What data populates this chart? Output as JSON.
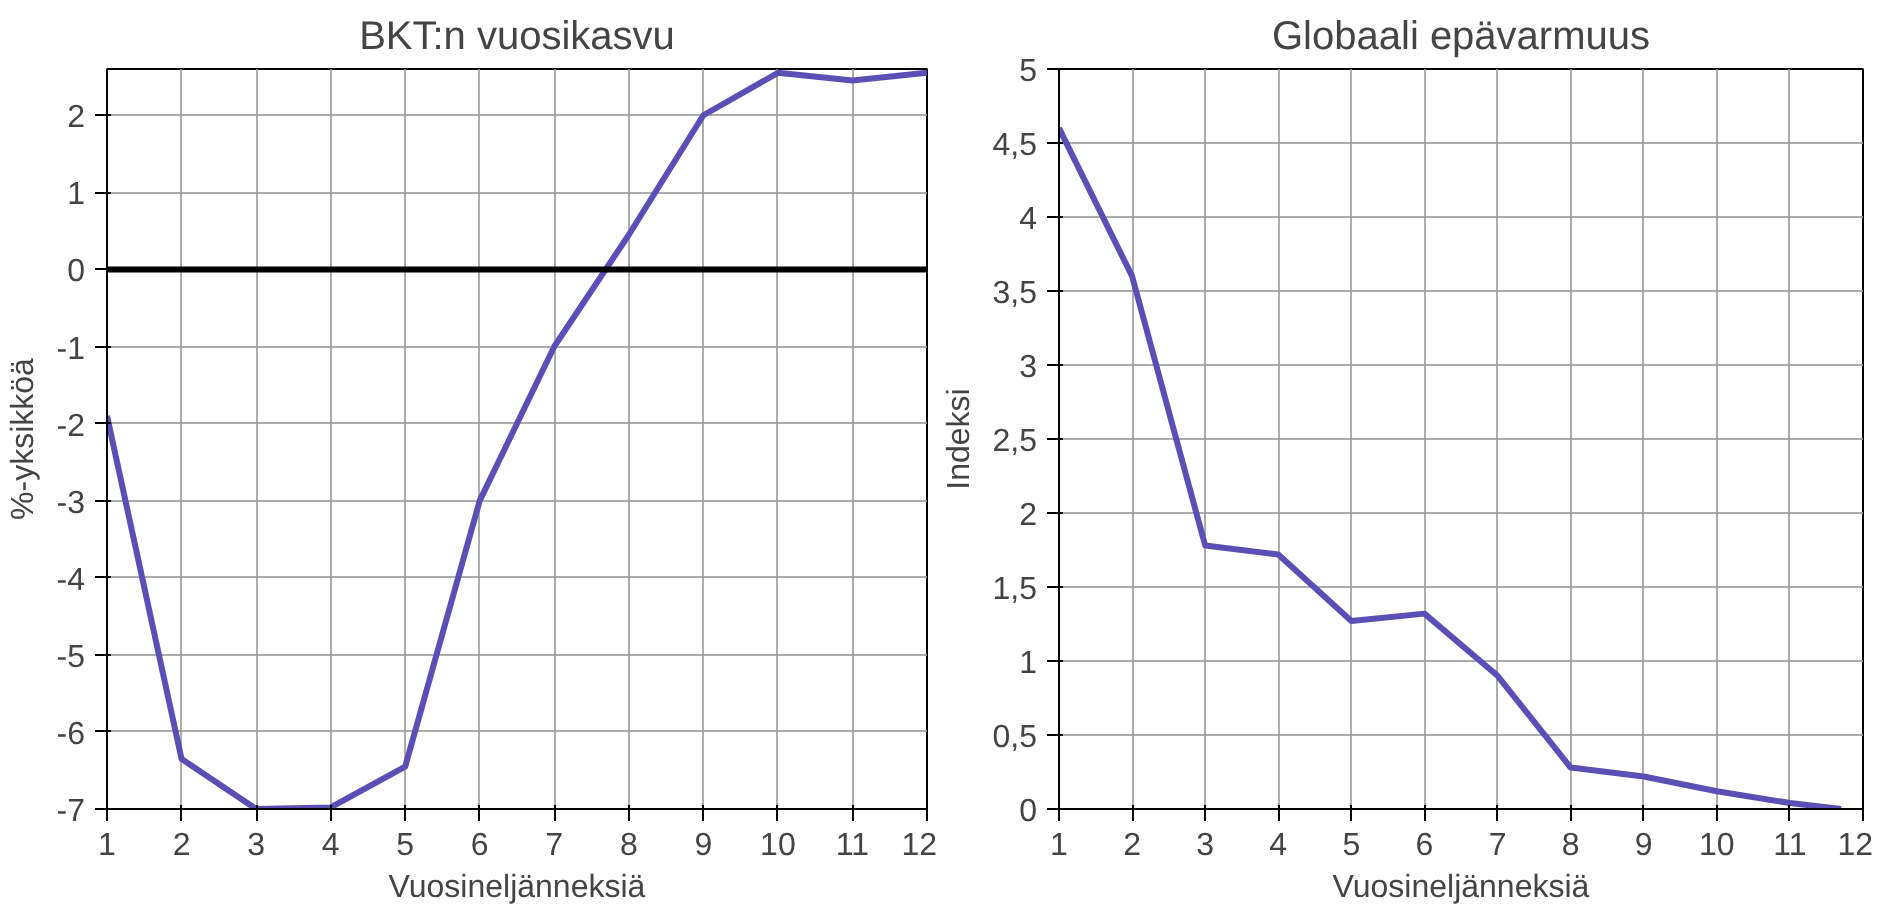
{
  "chart_data": [
    {
      "type": "line",
      "title": "BKT:n vuosikasvu",
      "xlabel": "Vuosineljänneksiä",
      "ylabel": "%-yksikköä",
      "x": [
        1,
        2,
        3,
        4,
        5,
        6,
        7,
        8,
        9,
        10,
        11,
        12
      ],
      "series": [
        {
          "color": "#5b4fb5",
          "values": [
            -1.9,
            -6.35,
            -7.0,
            -6.98,
            -6.45,
            -3.0,
            -1.0,
            0.45,
            2.0,
            2.55,
            2.45,
            2.55
          ]
        }
      ],
      "xlim": [
        1,
        12
      ],
      "xticks": [
        1,
        2,
        3,
        4,
        5,
        6,
        7,
        8,
        9,
        10,
        11,
        12
      ],
      "ylim": [
        -7,
        2.6
      ],
      "yticks": [
        -7,
        -6,
        -5,
        -4,
        -3,
        -2,
        -1,
        0,
        1,
        2
      ],
      "ref_lines": [
        {
          "axis": "y",
          "value": 0,
          "color": "#000000"
        }
      ],
      "grid": true,
      "line_style": "solid"
    },
    {
      "type": "line",
      "title": "Globaali epävarmuus",
      "xlabel": "Vuosineljänneksiä",
      "ylabel": "Indeksi",
      "x": [
        1,
        2,
        3,
        4,
        5,
        6,
        7,
        8,
        9,
        10,
        11,
        11.7
      ],
      "series": [
        {
          "color": "#5b4fb5",
          "values": [
            4.6,
            3.6,
            1.78,
            1.72,
            1.27,
            1.32,
            0.9,
            0.28,
            0.22,
            0.12,
            0.04,
            0
          ]
        }
      ],
      "xlim": [
        1,
        12
      ],
      "xticks": [
        1,
        2,
        3,
        4,
        5,
        6,
        7,
        8,
        9,
        10,
        11,
        12
      ],
      "ylim": [
        0,
        5
      ],
      "yticks": [
        0,
        {
          "value": 0.5,
          "label": "0,5"
        },
        1,
        {
          "value": 1.5,
          "label": "1,5"
        },
        2,
        {
          "value": 2.5,
          "label": "2,5"
        },
        3,
        {
          "value": 3.5,
          "label": "3,5"
        },
        4,
        {
          "value": 4.5,
          "label": "4,5"
        },
        5
      ],
      "grid": true,
      "line_style": "solid"
    }
  ]
}
